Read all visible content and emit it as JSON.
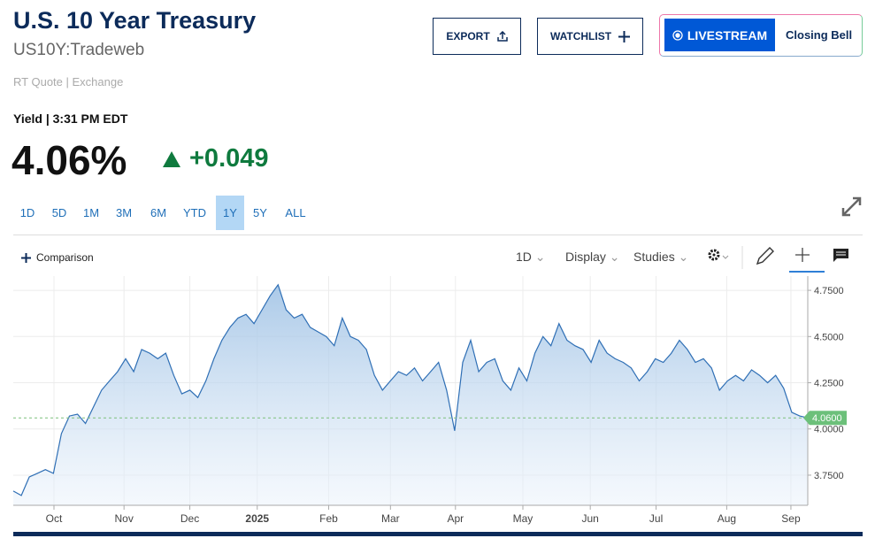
{
  "header": {
    "title": "U.S. 10 Year Treasury",
    "symbol": "US10Y:Tradeweb",
    "source": "RT Quote | Exchange"
  },
  "buttons": {
    "export": "EXPORT",
    "watchlist": "WATCHLIST",
    "livestream": "LIVESTREAM",
    "closing_bell": "Closing Bell"
  },
  "quote": {
    "label": "Yield | 3:31 PM EDT",
    "price": "4.06%",
    "change": "+0.049"
  },
  "ranges": [
    "1D",
    "5D",
    "1M",
    "3M",
    "6M",
    "YTD",
    "1Y",
    "5Y",
    "ALL"
  ],
  "selected_range": "1Y",
  "toolbar": {
    "comparison": "Comparison",
    "interval": "1D",
    "display": "Display",
    "studies": "Studies"
  },
  "chart_data": {
    "type": "area",
    "color": "#2f6fb5",
    "values": [
      3.664,
      3.64,
      3.74,
      3.76,
      3.78,
      3.76,
      3.975,
      4.07,
      4.08,
      4.03,
      4.12,
      4.21,
      4.26,
      4.31,
      4.38,
      4.31,
      4.43,
      4.41,
      4.38,
      4.41,
      4.29,
      4.19,
      4.21,
      4.17,
      4.26,
      4.38,
      4.48,
      4.55,
      4.6,
      4.62,
      4.57,
      4.645,
      4.72,
      4.78,
      4.645,
      4.6,
      4.62,
      4.55,
      4.525,
      4.5,
      4.45,
      4.6,
      4.5,
      4.48,
      4.43,
      4.29,
      4.21,
      4.26,
      4.31,
      4.29,
      4.33,
      4.26,
      4.31,
      4.36,
      4.21,
      3.99,
      4.36,
      4.48,
      4.31,
      4.36,
      4.38,
      4.26,
      4.21,
      4.33,
      4.26,
      4.41,
      4.5,
      4.45,
      4.57,
      4.48,
      4.45,
      4.43,
      4.36,
      4.48,
      4.41,
      4.38,
      4.36,
      4.33,
      4.26,
      4.31,
      4.38,
      4.36,
      4.41,
      4.48,
      4.43,
      4.36,
      4.38,
      4.33,
      4.21,
      4.26,
      4.29,
      4.26,
      4.32,
      4.29,
      4.25,
      4.29,
      4.22,
      4.09,
      4.07,
      4.06
    ],
    "xlim": [
      0,
      99
    ],
    "xticks": [
      {
        "value": 5.07,
        "label": "Oct"
      },
      {
        "value": 13.8,
        "label": "Nov"
      },
      {
        "value": 22.0,
        "label": "Dec"
      },
      {
        "value": 30.4,
        "label": "2025"
      },
      {
        "value": 39.3,
        "label": "Feb"
      },
      {
        "value": 47.0,
        "label": "Mar"
      },
      {
        "value": 55.1,
        "label": "Apr"
      },
      {
        "value": 63.5,
        "label": "May"
      },
      {
        "value": 71.9,
        "label": "Jun"
      },
      {
        "value": 80.1,
        "label": "Jul"
      },
      {
        "value": 88.9,
        "label": "Aug"
      },
      {
        "value": 96.9,
        "label": "Sep"
      }
    ],
    "ylim": [
      3.587,
      4.827
    ],
    "yticks": [
      {
        "value": 3.75,
        "label": "3.7500"
      },
      {
        "value": 4.0,
        "label": "4.0000"
      },
      {
        "value": 4.25,
        "label": "4.2500"
      },
      {
        "value": 4.5,
        "label": "4.5000"
      },
      {
        "value": 4.75,
        "label": "4.7500"
      }
    ],
    "last_label": {
      "value": 4.06,
      "label": "4.0600"
    },
    "grid": true
  }
}
